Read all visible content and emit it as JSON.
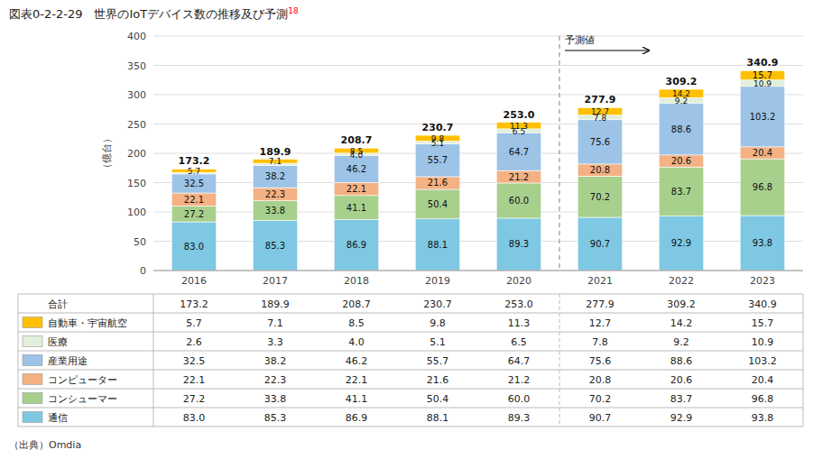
{
  "chart_data": {
    "type": "bar",
    "stacked": true,
    "data_labels": true,
    "grid": true,
    "title": "図表0-2-2-29　世界のIoTデバイス数の推移及び予測",
    "title_superscript": "18",
    "ylabel": "（億台）",
    "source": "（出典）Omdia",
    "forecast_label": "予測値",
    "forecast_from": "2021",
    "categories": [
      "2016",
      "2017",
      "2018",
      "2019",
      "2020",
      "2021",
      "2022",
      "2023"
    ],
    "ylim": [
      0,
      400
    ],
    "yticks": [
      0,
      50,
      100,
      150,
      200,
      250,
      300,
      350,
      400
    ],
    "series": [
      {
        "name": "通信",
        "color": "#7EC8E3",
        "values": [
          83.0,
          85.3,
          86.9,
          88.1,
          89.3,
          90.7,
          92.9,
          93.8
        ],
        "value_labels": [
          "83.0",
          "85.3",
          "86.9",
          "88.1",
          "89.3",
          "90.7",
          "92.9",
          "93.8"
        ]
      },
      {
        "name": "コンシューマー",
        "color": "#A8D08D",
        "values": [
          27.2,
          33.8,
          41.1,
          50.4,
          60.0,
          70.2,
          83.7,
          96.8
        ],
        "value_labels": [
          "27.2",
          "33.8",
          "41.1",
          "50.4",
          "60.0",
          "70.2",
          "83.7",
          "96.8"
        ]
      },
      {
        "name": "コンピューター",
        "color": "#F4B183",
        "values": [
          22.1,
          22.3,
          22.1,
          21.6,
          21.2,
          20.8,
          20.6,
          20.4
        ],
        "value_labels": [
          "22.1",
          "22.3",
          "22.1",
          "21.6",
          "21.2",
          "20.8",
          "20.6",
          "20.4"
        ]
      },
      {
        "name": "産業用途",
        "color": "#9DC3E6",
        "values": [
          32.5,
          38.2,
          46.2,
          55.7,
          64.7,
          75.6,
          88.6,
          103.2
        ],
        "value_labels": [
          "32.5",
          "38.2",
          "46.2",
          "55.7",
          "64.7",
          "75.6",
          "88.6",
          "103.2"
        ]
      },
      {
        "name": "医療",
        "color": "#E2EFDA",
        "values": [
          2.6,
          3.3,
          4.0,
          5.1,
          6.5,
          7.8,
          9.2,
          10.9
        ],
        "value_labels": [
          null,
          null,
          "4.0",
          "5.1",
          "6.5",
          "7.8",
          "9.2",
          "10.9"
        ]
      },
      {
        "name": "自動車・宇宙航空",
        "color": "#FFC000",
        "values": [
          5.7,
          7.1,
          8.5,
          9.8,
          11.3,
          12.7,
          14.2,
          15.7
        ],
        "value_labels": [
          "5.7",
          "7.1",
          "8.5",
          "9.8",
          "11.3",
          "12.7",
          "14.2",
          "15.7"
        ]
      }
    ],
    "totals": [
      173.2,
      189.9,
      208.7,
      230.7,
      253.0,
      277.9,
      309.2,
      340.9
    ],
    "total_labels": [
      "173.2",
      "189.9",
      "208.7",
      "230.7",
      "253.0",
      "277.9",
      "309.2",
      "340.9"
    ],
    "table": {
      "rows": [
        {
          "name": "合計",
          "values": [
            173.2,
            189.9,
            208.7,
            230.7,
            253.0,
            277.9,
            309.2,
            340.9
          ],
          "value_labels": [
            "173.2",
            "189.9",
            "208.7",
            "230.7",
            "253.0",
            "277.9",
            "309.2",
            "340.9"
          ]
        },
        {
          "name": "自動車・宇宙航空",
          "values": [
            5.7,
            7.1,
            8.5,
            9.8,
            11.3,
            12.7,
            14.2,
            15.7
          ],
          "value_labels": [
            "5.7",
            "7.1",
            "8.5",
            "9.8",
            "11.3",
            "12.7",
            "14.2",
            "15.7"
          ]
        },
        {
          "name": "医療",
          "values": [
            2.6,
            3.3,
            4.0,
            5.1,
            6.5,
            7.8,
            9.2,
            10.9
          ],
          "value_labels": [
            "2.6",
            "3.3",
            "4.0",
            "5.1",
            "6.5",
            "7.8",
            "9.2",
            "10.9"
          ]
        },
        {
          "name": "産業用途",
          "values": [
            32.5,
            38.2,
            46.2,
            55.7,
            64.7,
            75.6,
            88.6,
            103.2
          ],
          "value_labels": [
            "32.5",
            "38.2",
            "46.2",
            "55.7",
            "64.7",
            "75.6",
            "88.6",
            "103.2"
          ]
        },
        {
          "name": "コンピューター",
          "values": [
            22.1,
            22.3,
            22.1,
            21.6,
            21.2,
            20.8,
            20.6,
            20.4
          ],
          "value_labels": [
            "22.1",
            "22.3",
            "22.1",
            "21.6",
            "21.2",
            "20.8",
            "20.6",
            "20.4"
          ]
        },
        {
          "name": "コンシューマー",
          "values": [
            27.2,
            33.8,
            41.1,
            50.4,
            60.0,
            70.2,
            83.7,
            96.8
          ],
          "value_labels": [
            "27.2",
            "33.8",
            "41.1",
            "50.4",
            "60.0",
            "70.2",
            "83.7",
            "96.8"
          ]
        },
        {
          "name": "通信",
          "values": [
            83.0,
            85.3,
            86.9,
            88.1,
            89.3,
            90.7,
            92.9,
            93.8
          ],
          "value_labels": [
            "83.0",
            "85.3",
            "86.9",
            "88.1",
            "89.3",
            "90.7",
            "92.9",
            "93.8"
          ]
        }
      ]
    }
  }
}
